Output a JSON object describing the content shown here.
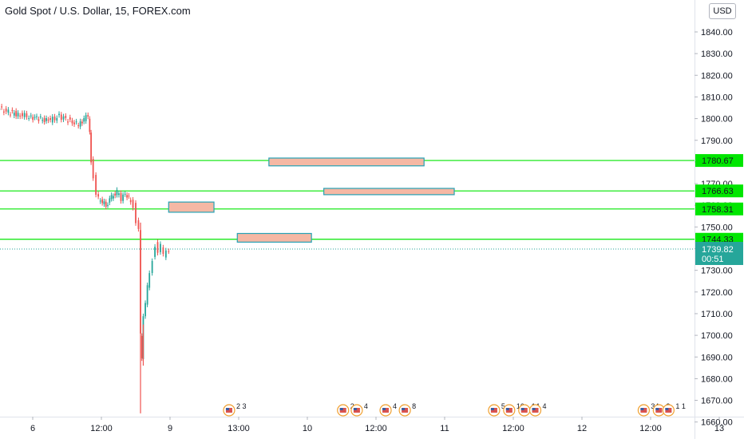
{
  "header": {
    "title": "Gold Spot / U.S. Dollar, 15, FOREX.com",
    "currency_button": "USD"
  },
  "price_badge": {
    "price": "1739.82",
    "countdown": "00:51"
  },
  "colors": {
    "level_line": "#00e600",
    "zone_fill": "#f5b8a4",
    "zone_border": "#26a2b5",
    "up_candle": "#26a69a",
    "down_candle": "#ef5350",
    "price_badge": "#26a69a"
  },
  "chart_data": {
    "type": "candlestick",
    "symbol": "Gold Spot / U.S. Dollar",
    "interval": "15",
    "source": "FOREX.com",
    "ylim": [
      1655,
      1841
    ],
    "y_ticks": [
      "1840.00",
      "1830.00",
      "1820.00",
      "1810.00",
      "1800.00",
      "1790.00",
      "1780.00",
      "1770.00",
      "1760.00",
      "1750.00",
      "1740.00",
      "1730.00",
      "1720.00",
      "1710.00",
      "1700.00",
      "1690.00",
      "1680.00",
      "1670.00",
      "1660.00"
    ],
    "x_ticks": [
      {
        "label": "6",
        "x": 0.5
      },
      {
        "label": "12:00",
        "x": 1.0
      },
      {
        "label": "9",
        "x": 1.5
      },
      {
        "label": "13:00",
        "x": 2.0
      },
      {
        "label": "10",
        "x": 2.5
      },
      {
        "label": "12:00",
        "x": 3.0
      },
      {
        "label": "11",
        "x": 3.5
      },
      {
        "label": "12:00",
        "x": 4.0
      },
      {
        "label": "12",
        "x": 4.5
      },
      {
        "label": "12:00",
        "x": 5.0
      },
      {
        "label": "13",
        "x": 5.5
      }
    ],
    "levels": [
      {
        "label": "1780.67",
        "price": 1780.67
      },
      {
        "label": "1766.63",
        "price": 1766.63
      },
      {
        "label": "1758.31",
        "price": 1758.31
      },
      {
        "label": "1744.33",
        "price": 1744.33
      }
    ],
    "last_price": 1739.82,
    "zones": [
      {
        "x_start": 2.22,
        "x_end": 3.35,
        "top": 1781.8,
        "bottom": 1778.2
      },
      {
        "x_start": 2.62,
        "x_end": 3.57,
        "top": 1767.8,
        "bottom": 1764.9
      },
      {
        "x_start": 1.49,
        "x_end": 1.82,
        "top": 1761.5,
        "bottom": 1756.8
      },
      {
        "x_start": 1.99,
        "x_end": 2.53,
        "top": 1747.0,
        "bottom": 1743.0
      }
    ],
    "price_path": [
      [
        0.0,
        1807
      ],
      [
        0.03,
        1800
      ],
      [
        0.07,
        1806
      ],
      [
        0.12,
        1808
      ],
      [
        0.18,
        1804
      ],
      [
        0.25,
        1805
      ],
      [
        0.33,
        1803
      ],
      [
        0.4,
        1802
      ],
      [
        0.48,
        1801
      ],
      [
        0.55,
        1800
      ],
      [
        0.62,
        1799
      ],
      [
        0.7,
        1801
      ],
      [
        0.78,
        1799
      ],
      [
        0.84,
        1797
      ],
      [
        0.88,
        1800
      ],
      [
        0.91,
        1801
      ],
      [
        0.92,
        1794
      ],
      [
        0.93,
        1781
      ],
      [
        0.95,
        1773
      ],
      [
        0.97,
        1764
      ],
      [
        1.0,
        1762
      ],
      [
        1.04,
        1760
      ],
      [
        1.08,
        1764
      ],
      [
        1.12,
        1766
      ],
      [
        1.15,
        1763
      ],
      [
        1.18,
        1765
      ],
      [
        1.22,
        1762
      ],
      [
        1.24,
        1760
      ],
      [
        1.26,
        1752
      ],
      [
        1.28,
        1748
      ],
      [
        1.29,
        1700
      ],
      [
        1.3,
        1690
      ],
      [
        1.31,
        1710
      ],
      [
        1.33,
        1715
      ],
      [
        1.34,
        1722
      ],
      [
        1.36,
        1728
      ],
      [
        1.38,
        1735
      ],
      [
        1.4,
        1742
      ],
      [
        1.42,
        1738
      ],
      [
        1.44,
        1741
      ],
      [
        1.46,
        1737
      ],
      [
        1.48,
        1740
      ],
      [
        1.5,
        1739.82
      ]
    ],
    "spikes": [
      {
        "x": 1.285,
        "high": 1752,
        "low": 1664
      },
      {
        "x": 1.305,
        "high": 1705,
        "low": 1686
      }
    ],
    "event_markers": [
      {
        "x": 1.93,
        "counts": "2 3"
      },
      {
        "x": 2.76,
        "counts": "2"
      },
      {
        "x": 2.86,
        "counts": "4"
      },
      {
        "x": 3.07,
        "counts": "4"
      },
      {
        "x": 3.21,
        "counts": "8"
      },
      {
        "x": 3.86,
        "counts": "5"
      },
      {
        "x": 3.97,
        "counts": "10"
      },
      {
        "x": 4.08,
        "counts": "14"
      },
      {
        "x": 4.16,
        "counts": "4"
      },
      {
        "x": 4.95,
        "counts": "34"
      },
      {
        "x": 5.06,
        "counts": "2"
      },
      {
        "x": 5.13,
        "counts": "1 1"
      }
    ]
  }
}
